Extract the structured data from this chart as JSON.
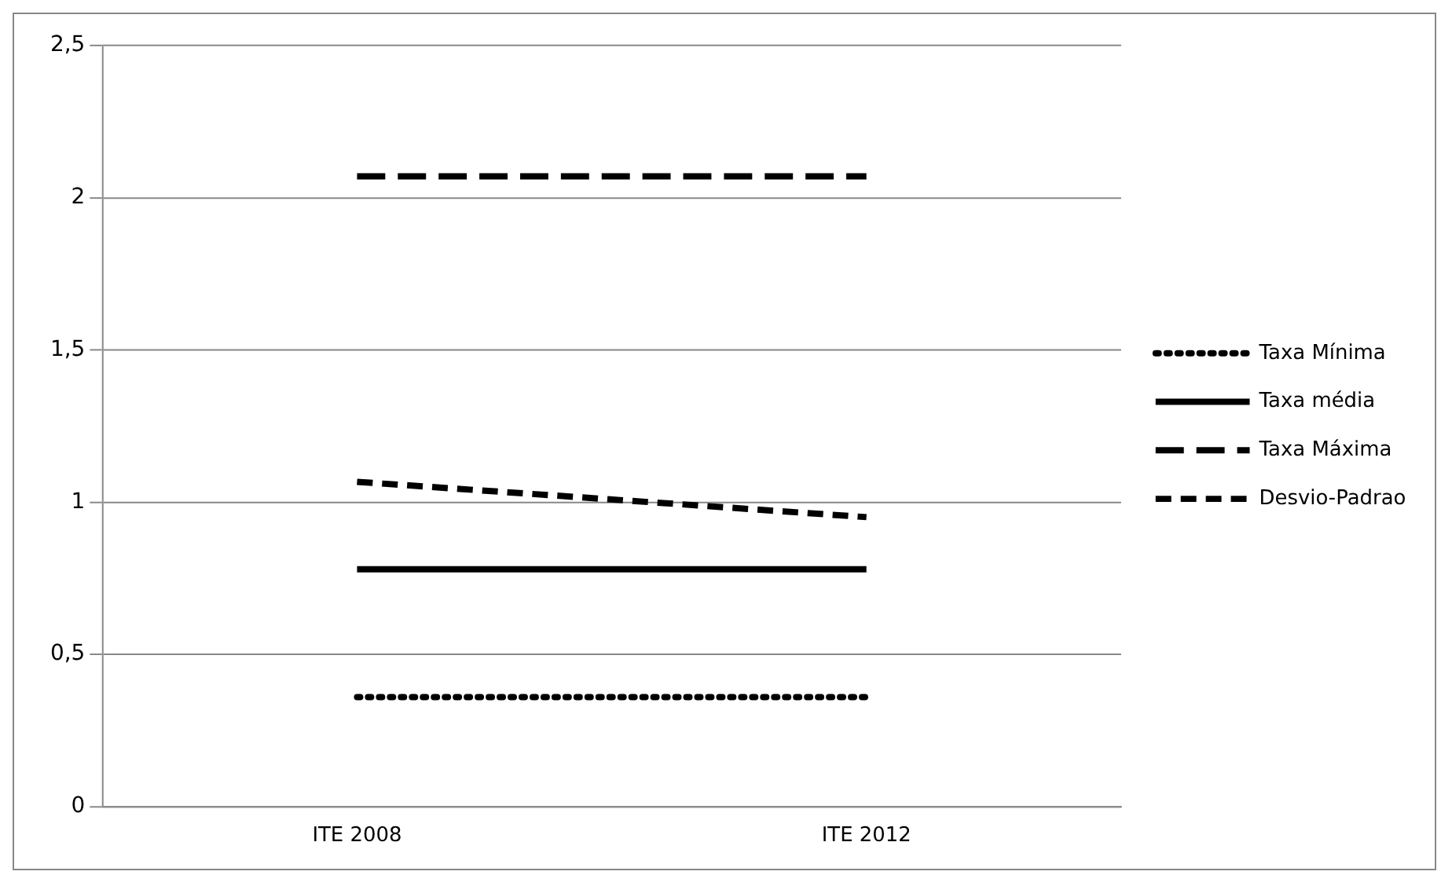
{
  "chart_data": {
    "type": "line",
    "categories": [
      "ITE 2008",
      "ITE 2012"
    ],
    "series": [
      {
        "name": "Taxa Mínima",
        "color": "#000000",
        "values": [
          0.36,
          0.36
        ],
        "line_style": "dotted"
      },
      {
        "name": "Taxa média",
        "color": "#000000",
        "values": [
          0.78,
          0.78
        ],
        "line_style": "solid"
      },
      {
        "name": "Taxa Máxima",
        "color": "#000000",
        "values": [
          2.07,
          2.07
        ],
        "line_style": "dashed"
      },
      {
        "name": "Desvio-Padrao",
        "color": "#000000",
        "values": [
          1.067,
          0.951
        ],
        "line_style": "dashed"
      }
    ],
    "ylim": [
      0,
      2.5
    ],
    "yticks": [
      0,
      {
        "value": 0.5,
        "label": "0,5"
      },
      1,
      {
        "value": 1.5,
        "label": "1,5"
      },
      2,
      {
        "value": 2.5,
        "label": "2,5"
      }
    ],
    "grid": "y",
    "legend": "right",
    "marker": "none"
  }
}
